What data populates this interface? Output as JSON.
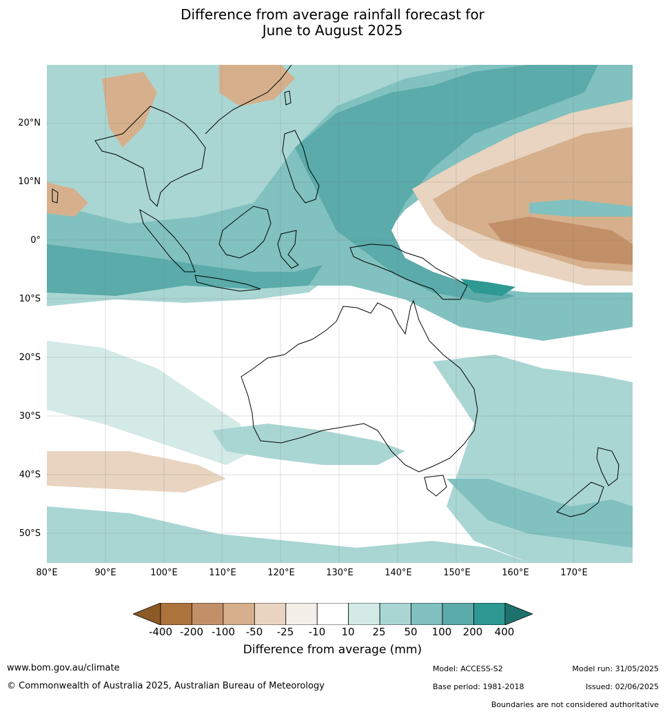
{
  "title_line1": "Difference from average rainfall forecast for",
  "title_line2": "June to August 2025",
  "lat_labels": [
    "20°N",
    "10°N",
    "0°",
    "10°S",
    "20°S",
    "30°S",
    "40°S",
    "50°S"
  ],
  "lon_labels": [
    "80°E",
    "90°E",
    "100°E",
    "110°E",
    "120°E",
    "130°E",
    "140°E",
    "150°E",
    "160°E",
    "170°E"
  ],
  "colorbar": {
    "tick_labels": [
      "-400",
      "-200",
      "-100",
      "-50",
      "-25",
      "-10",
      "10",
      "25",
      "50",
      "100",
      "200",
      "400"
    ],
    "colors": [
      "#8c5a26",
      "#ad733c",
      "#c29068",
      "#d6b08c",
      "#e8d4c0",
      "#f4efe8",
      "#ffffff",
      "#d3eae7",
      "#a9d6d3",
      "#81c1bf",
      "#5aabaa",
      "#2e9893",
      "#1e726e"
    ],
    "label": "Difference from average (mm)"
  },
  "footer": {
    "url": "www.bom.gov.au/climate",
    "copyright": "© Commonwealth of Australia 2025, Australian Bureau of Meteorology",
    "model": "Model: ACCESS-S2",
    "base_period": "Base period: 1981-2018",
    "model_run": "Model run: 31/05/2025",
    "issued": "Issued: 02/06/2025",
    "disclaimer": "Boundaries are not considered authoritative"
  }
}
